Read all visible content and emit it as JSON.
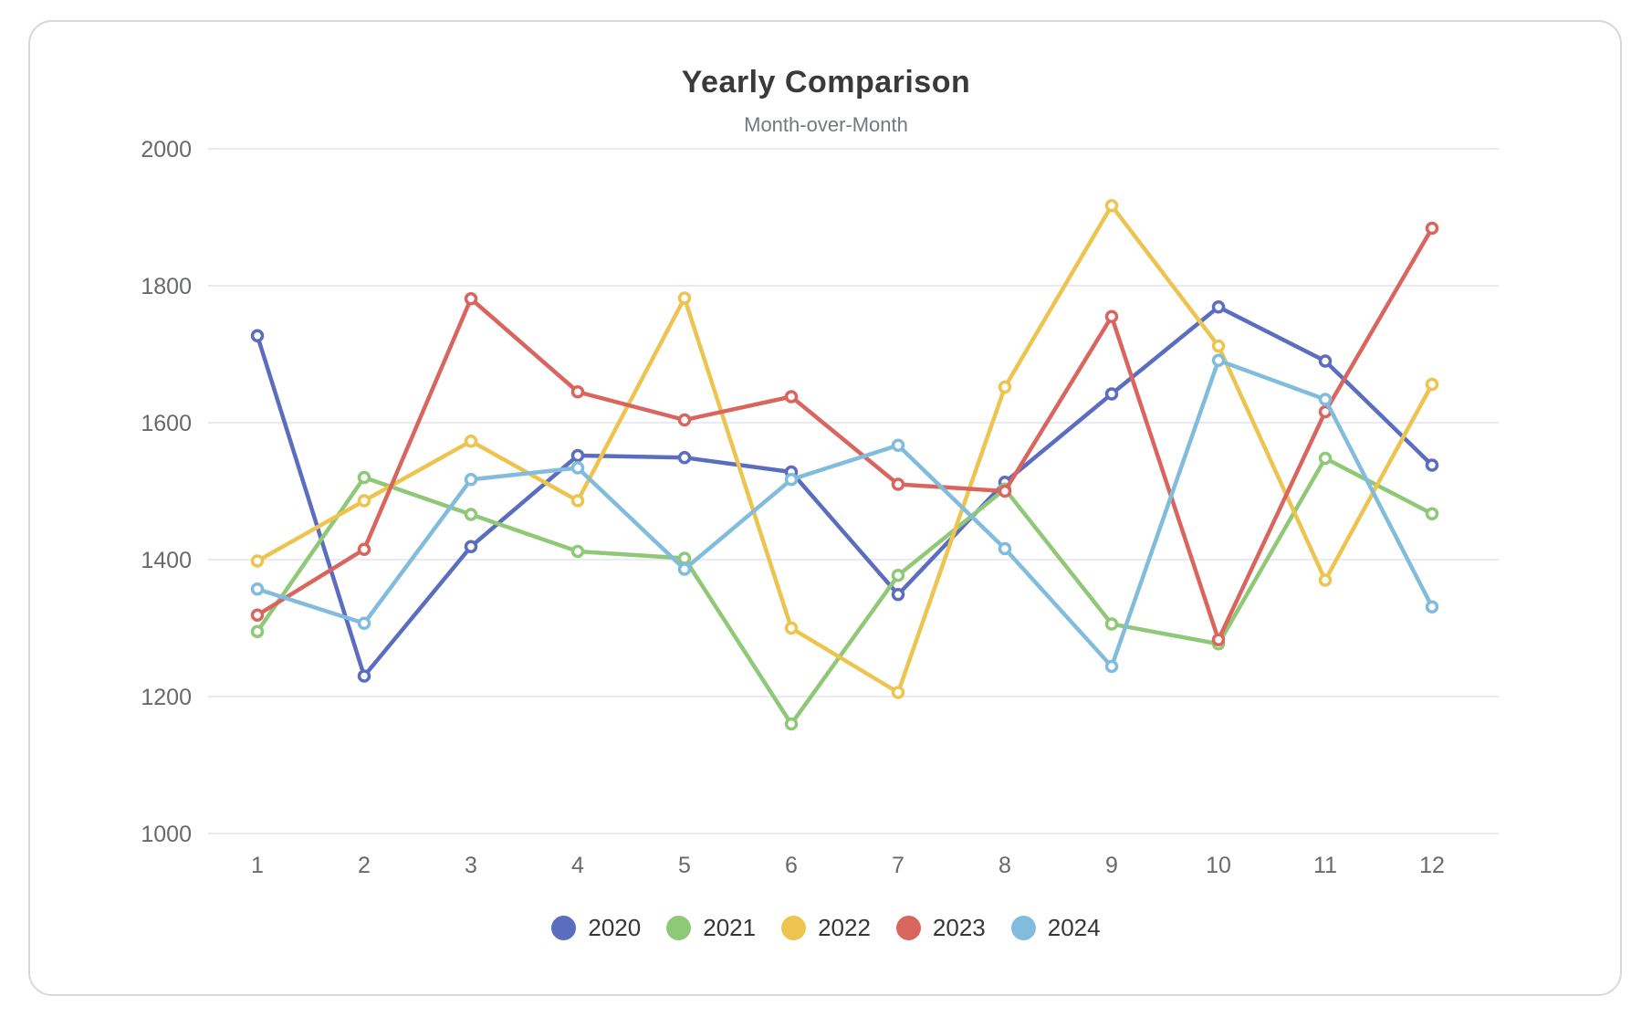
{
  "theme": {
    "card_border_color": "#d7d7df",
    "background_color": "#ffffff",
    "grid_color": "#e4e4ef",
    "axis_label_color": "#67696e",
    "title_color": "#3a3a3a",
    "subtitle_color": "#75787f",
    "legend_text_color": "#363636"
  },
  "chart_data": {
    "type": "line",
    "title": "Yearly Comparison",
    "subtitle": "Month-over-Month",
    "xlabel": "",
    "ylabel": "",
    "categories": [
      "1",
      "2",
      "3",
      "4",
      "5",
      "6",
      "7",
      "8",
      "9",
      "10",
      "11",
      "12"
    ],
    "ylim": [
      1000,
      2000
    ],
    "yticks": [
      2000,
      1800,
      1600,
      1400,
      1200,
      1000
    ],
    "grid": "horizontal",
    "legend_position": "bottom",
    "marker": "open-circle",
    "series": [
      {
        "name": "2020",
        "color": "#5b6dbf",
        "values": [
          1727,
          1230,
          1419,
          1552,
          1549,
          1528,
          1349,
          1513,
          1642,
          1769,
          1690,
          1538
        ]
      },
      {
        "name": "2021",
        "color": "#8fc877",
        "values": [
          1295,
          1520,
          1466,
          1412,
          1402,
          1160,
          1377,
          1503,
          1306,
          1277,
          1548,
          1467
        ]
      },
      {
        "name": "2022",
        "color": "#ecc44f",
        "values": [
          1398,
          1486,
          1573,
          1486,
          1782,
          1300,
          1206,
          1652,
          1917,
          1712,
          1370,
          1656
        ]
      },
      {
        "name": "2023",
        "color": "#d9665e",
        "values": [
          1319,
          1415,
          1781,
          1645,
          1604,
          1638,
          1510,
          1500,
          1755,
          1283,
          1616,
          1884
        ]
      },
      {
        "name": "2024",
        "color": "#82bcdc",
        "values": [
          1357,
          1307,
          1517,
          1534,
          1386,
          1517,
          1567,
          1416,
          1244,
          1691,
          1634,
          1331
        ]
      }
    ]
  }
}
